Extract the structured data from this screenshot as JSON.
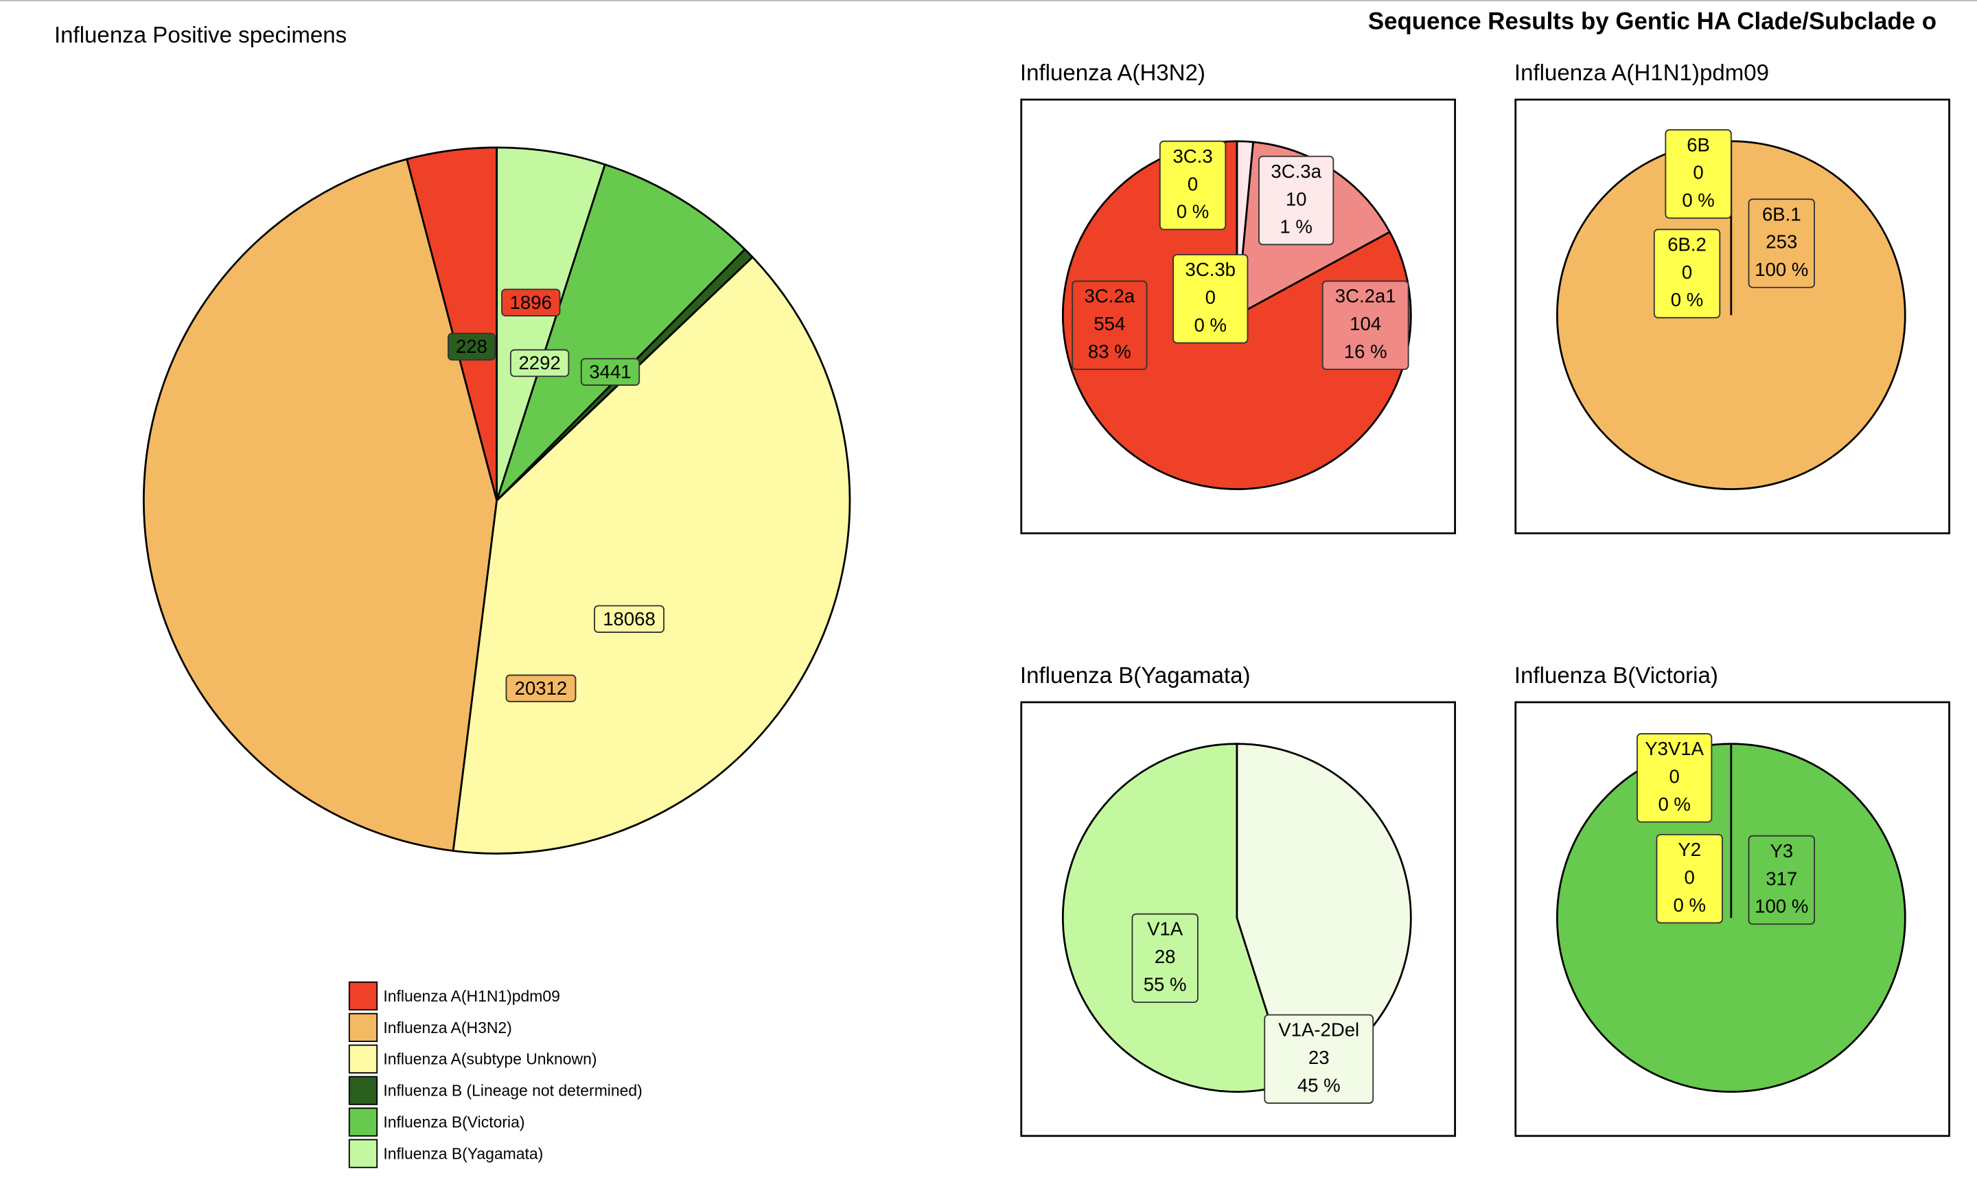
{
  "section_title": "Sequence Results by Gentic HA Clade/Subclade o",
  "chart_data": [
    {
      "type": "pie",
      "title": "Influenza Positive specimens",
      "direction": "counterclockwise",
      "legend": "bottom",
      "categories": [
        "Influenza A(H1N1)pdm09",
        "Influenza A(H3N2)",
        "Influenza A(subtype Unknown)",
        "Influenza B (Lineage not determined)",
        "Influenza B(Victoria)",
        "Influenza B(Yagamata)"
      ],
      "values": [
        1896,
        20312,
        18068,
        228,
        3441,
        2292
      ],
      "colors": [
        "#ee4127",
        "#f4b963",
        "#fefaa6",
        "#2a5e1c",
        "#67c94d",
        "#c3f8a0"
      ]
    },
    {
      "type": "pie",
      "title": "Influenza A(H3N2)",
      "direction": "clockwise",
      "categories": [
        "3C.3",
        "3C.3a",
        "3C.2a1",
        "3C.2a",
        "3C.3b"
      ],
      "values": [
        0,
        10,
        104,
        554,
        0
      ],
      "percent_labels": [
        "0 %",
        "1 %",
        "16 %",
        "83 %",
        "0 %"
      ],
      "colors": [
        "#ffff4d",
        "#fde8ea",
        "#f08a86",
        "#ee4127",
        "#ffff4d"
      ]
    },
    {
      "type": "pie",
      "title": "Influenza A(H1N1)pdm09",
      "direction": "clockwise",
      "categories": [
        "6B",
        "6B.1",
        "6B.2"
      ],
      "values": [
        0,
        253,
        0
      ],
      "percent_labels": [
        "0 %",
        "100 %",
        "0 %"
      ],
      "colors": [
        "#ffff4d",
        "#f4b963",
        "#ffff4d"
      ]
    },
    {
      "type": "pie",
      "title": "Influenza B(Yagamata)",
      "direction": "clockwise",
      "categories": [
        "V1A-2Del",
        "V1A"
      ],
      "values": [
        23,
        28
      ],
      "percent_labels": [
        "45 %",
        "55 %"
      ],
      "colors": [
        "#f2fbe5",
        "#c3f8a0"
      ]
    },
    {
      "type": "pie",
      "title": "Influenza B(Victoria)",
      "direction": "clockwise",
      "categories": [
        "Y3V1A",
        "Y3",
        "Y2"
      ],
      "values": [
        0,
        317,
        0
      ],
      "percent_labels": [
        "0 %",
        "100 %",
        "0 %"
      ],
      "colors": [
        "#ffff4d",
        "#67c94d",
        "#ffff4d"
      ]
    }
  ]
}
